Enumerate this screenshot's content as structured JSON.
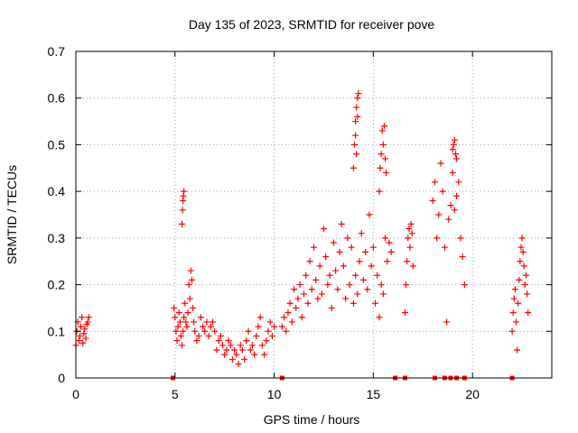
{
  "chart_data": {
    "type": "scatter",
    "title": "Day 135 of 2023, SRMTID for receiver pove",
    "xlabel": "GPS time / hours",
    "ylabel": "SRMTID / TECUs",
    "xlim": [
      0,
      24
    ],
    "ylim": [
      0,
      0.7
    ],
    "xticks": [
      0,
      5,
      10,
      15,
      20
    ],
    "yticks": [
      0,
      0.1,
      0.2,
      0.3,
      0.4,
      0.5,
      0.6,
      0.7
    ],
    "xtick_labels": [
      "0",
      "5",
      "10",
      "15",
      "20"
    ],
    "ytick_labels": [
      "0",
      "0.1",
      "0.2",
      "0.3",
      "0.4",
      "0.5",
      "0.6",
      "0.7"
    ],
    "grid": true,
    "marker": "+",
    "marker_color": "#ff0000",
    "zero_marker": "square",
    "series": [
      {
        "name": "SRMTID",
        "x": [
          0.0,
          0.05,
          0.1,
          0.15,
          0.2,
          0.25,
          0.3,
          0.35,
          0.4,
          0.45,
          0.5,
          0.55,
          0.6,
          0.65,
          4.95,
          5.0,
          5.05,
          5.1,
          5.15,
          5.2,
          5.25,
          5.3,
          5.35,
          5.4,
          5.45,
          5.5,
          5.55,
          5.6,
          5.65,
          5.7,
          5.75,
          5.8,
          5.85,
          5.9,
          5.95,
          6.0,
          6.1,
          6.2,
          6.3,
          6.4,
          6.5,
          6.6,
          6.7,
          6.8,
          6.9,
          7.0,
          7.1,
          7.2,
          7.3,
          7.4,
          7.5,
          7.6,
          7.7,
          7.8,
          7.9,
          8.0,
          8.1,
          8.2,
          8.3,
          8.4,
          8.5,
          8.6,
          8.7,
          8.8,
          8.9,
          9.0,
          9.1,
          9.2,
          9.3,
          9.4,
          9.5,
          9.6,
          9.7,
          9.8,
          9.9,
          10.0,
          5.35,
          5.38,
          5.4,
          5.42,
          5.45,
          10.4,
          10.5,
          10.6,
          10.7,
          10.8,
          10.9,
          11.0,
          11.1,
          11.2,
          11.3,
          11.4,
          11.5,
          11.6,
          11.7,
          11.8,
          11.9,
          12.0,
          12.1,
          12.2,
          12.3,
          12.4,
          12.5,
          12.6,
          12.7,
          12.8,
          12.9,
          13.0,
          13.1,
          13.2,
          13.3,
          13.4,
          13.5,
          13.6,
          13.7,
          13.8,
          13.9,
          14.0,
          14.1,
          14.2,
          14.3,
          14.4,
          14.5,
          14.6,
          14.7,
          14.8,
          14.9,
          15.0,
          15.1,
          15.2,
          15.3,
          15.4,
          15.5,
          15.6,
          15.7,
          15.8,
          15.9,
          14.0,
          14.05,
          14.1,
          14.15,
          14.2,
          14.25,
          14.1,
          14.15,
          14.2,
          15.3,
          15.35,
          15.4,
          15.45,
          15.5,
          15.55,
          15.6,
          15.65,
          16.6,
          16.65,
          16.7,
          16.75,
          16.8,
          16.85,
          16.9,
          16.95,
          17.0,
          18.0,
          18.1,
          18.2,
          18.3,
          18.4,
          18.5,
          18.6,
          18.7,
          18.8,
          18.9,
          19.0,
          19.1,
          19.2,
          19.3,
          19.4,
          19.5,
          19.6,
          19.0,
          19.05,
          19.1,
          19.15,
          19.2,
          22.0,
          22.05,
          22.1,
          22.15,
          22.2,
          22.25,
          22.3,
          22.35,
          22.4,
          22.45,
          22.5,
          22.55,
          22.6,
          22.65,
          22.7,
          22.75,
          22.8
        ],
        "y": [
          0.07,
          0.1,
          0.12,
          0.08,
          0.09,
          0.11,
          0.13,
          0.075,
          0.095,
          0.105,
          0.085,
          0.115,
          0.12,
          0.13,
          0.15,
          0.13,
          0.1,
          0.08,
          0.11,
          0.14,
          0.12,
          0.09,
          0.07,
          0.1,
          0.13,
          0.16,
          0.12,
          0.11,
          0.14,
          0.2,
          0.17,
          0.23,
          0.21,
          0.15,
          0.12,
          0.1,
          0.08,
          0.09,
          0.13,
          0.11,
          0.1,
          0.12,
          0.09,
          0.11,
          0.12,
          0.1,
          0.06,
          0.08,
          0.09,
          0.07,
          0.05,
          0.06,
          0.08,
          0.07,
          0.04,
          0.06,
          0.05,
          0.03,
          0.07,
          0.06,
          0.04,
          0.08,
          0.1,
          0.06,
          0.07,
          0.05,
          0.09,
          0.11,
          0.13,
          0.07,
          0.05,
          0.08,
          0.1,
          0.12,
          0.09,
          0.11,
          0.33,
          0.36,
          0.38,
          0.39,
          0.4,
          0.11,
          0.13,
          0.1,
          0.14,
          0.16,
          0.12,
          0.19,
          0.15,
          0.17,
          0.2,
          0.13,
          0.18,
          0.22,
          0.16,
          0.25,
          0.19,
          0.28,
          0.21,
          0.17,
          0.24,
          0.18,
          0.32,
          0.26,
          0.2,
          0.22,
          0.15,
          0.29,
          0.23,
          0.19,
          0.27,
          0.33,
          0.24,
          0.17,
          0.3,
          0.2,
          0.28,
          0.16,
          0.22,
          0.18,
          0.25,
          0.31,
          0.21,
          0.27,
          0.19,
          0.35,
          0.24,
          0.28,
          0.16,
          0.22,
          0.13,
          0.2,
          0.18,
          0.3,
          0.25,
          0.29,
          0.27,
          0.45,
          0.5,
          0.55,
          0.58,
          0.6,
          0.61,
          0.52,
          0.48,
          0.56,
          0.4,
          0.45,
          0.48,
          0.53,
          0.5,
          0.54,
          0.47,
          0.44,
          0.14,
          0.2,
          0.25,
          0.3,
          0.32,
          0.28,
          0.33,
          0.31,
          0.24,
          0.38,
          0.42,
          0.3,
          0.35,
          0.46,
          0.4,
          0.28,
          0.12,
          0.34,
          0.37,
          0.44,
          0.36,
          0.39,
          0.42,
          0.3,
          0.26,
          0.2,
          0.49,
          0.5,
          0.51,
          0.48,
          0.47,
          0.1,
          0.14,
          0.17,
          0.19,
          0.12,
          0.06,
          0.16,
          0.21,
          0.25,
          0.28,
          0.3,
          0.27,
          0.24,
          0.2,
          0.22,
          0.18,
          0.14
        ]
      }
    ],
    "zero_points_x": [
      4.9,
      10.4,
      16.1,
      16.6,
      18.1,
      18.6,
      18.9,
      19.2,
      19.6,
      22.0
    ]
  }
}
